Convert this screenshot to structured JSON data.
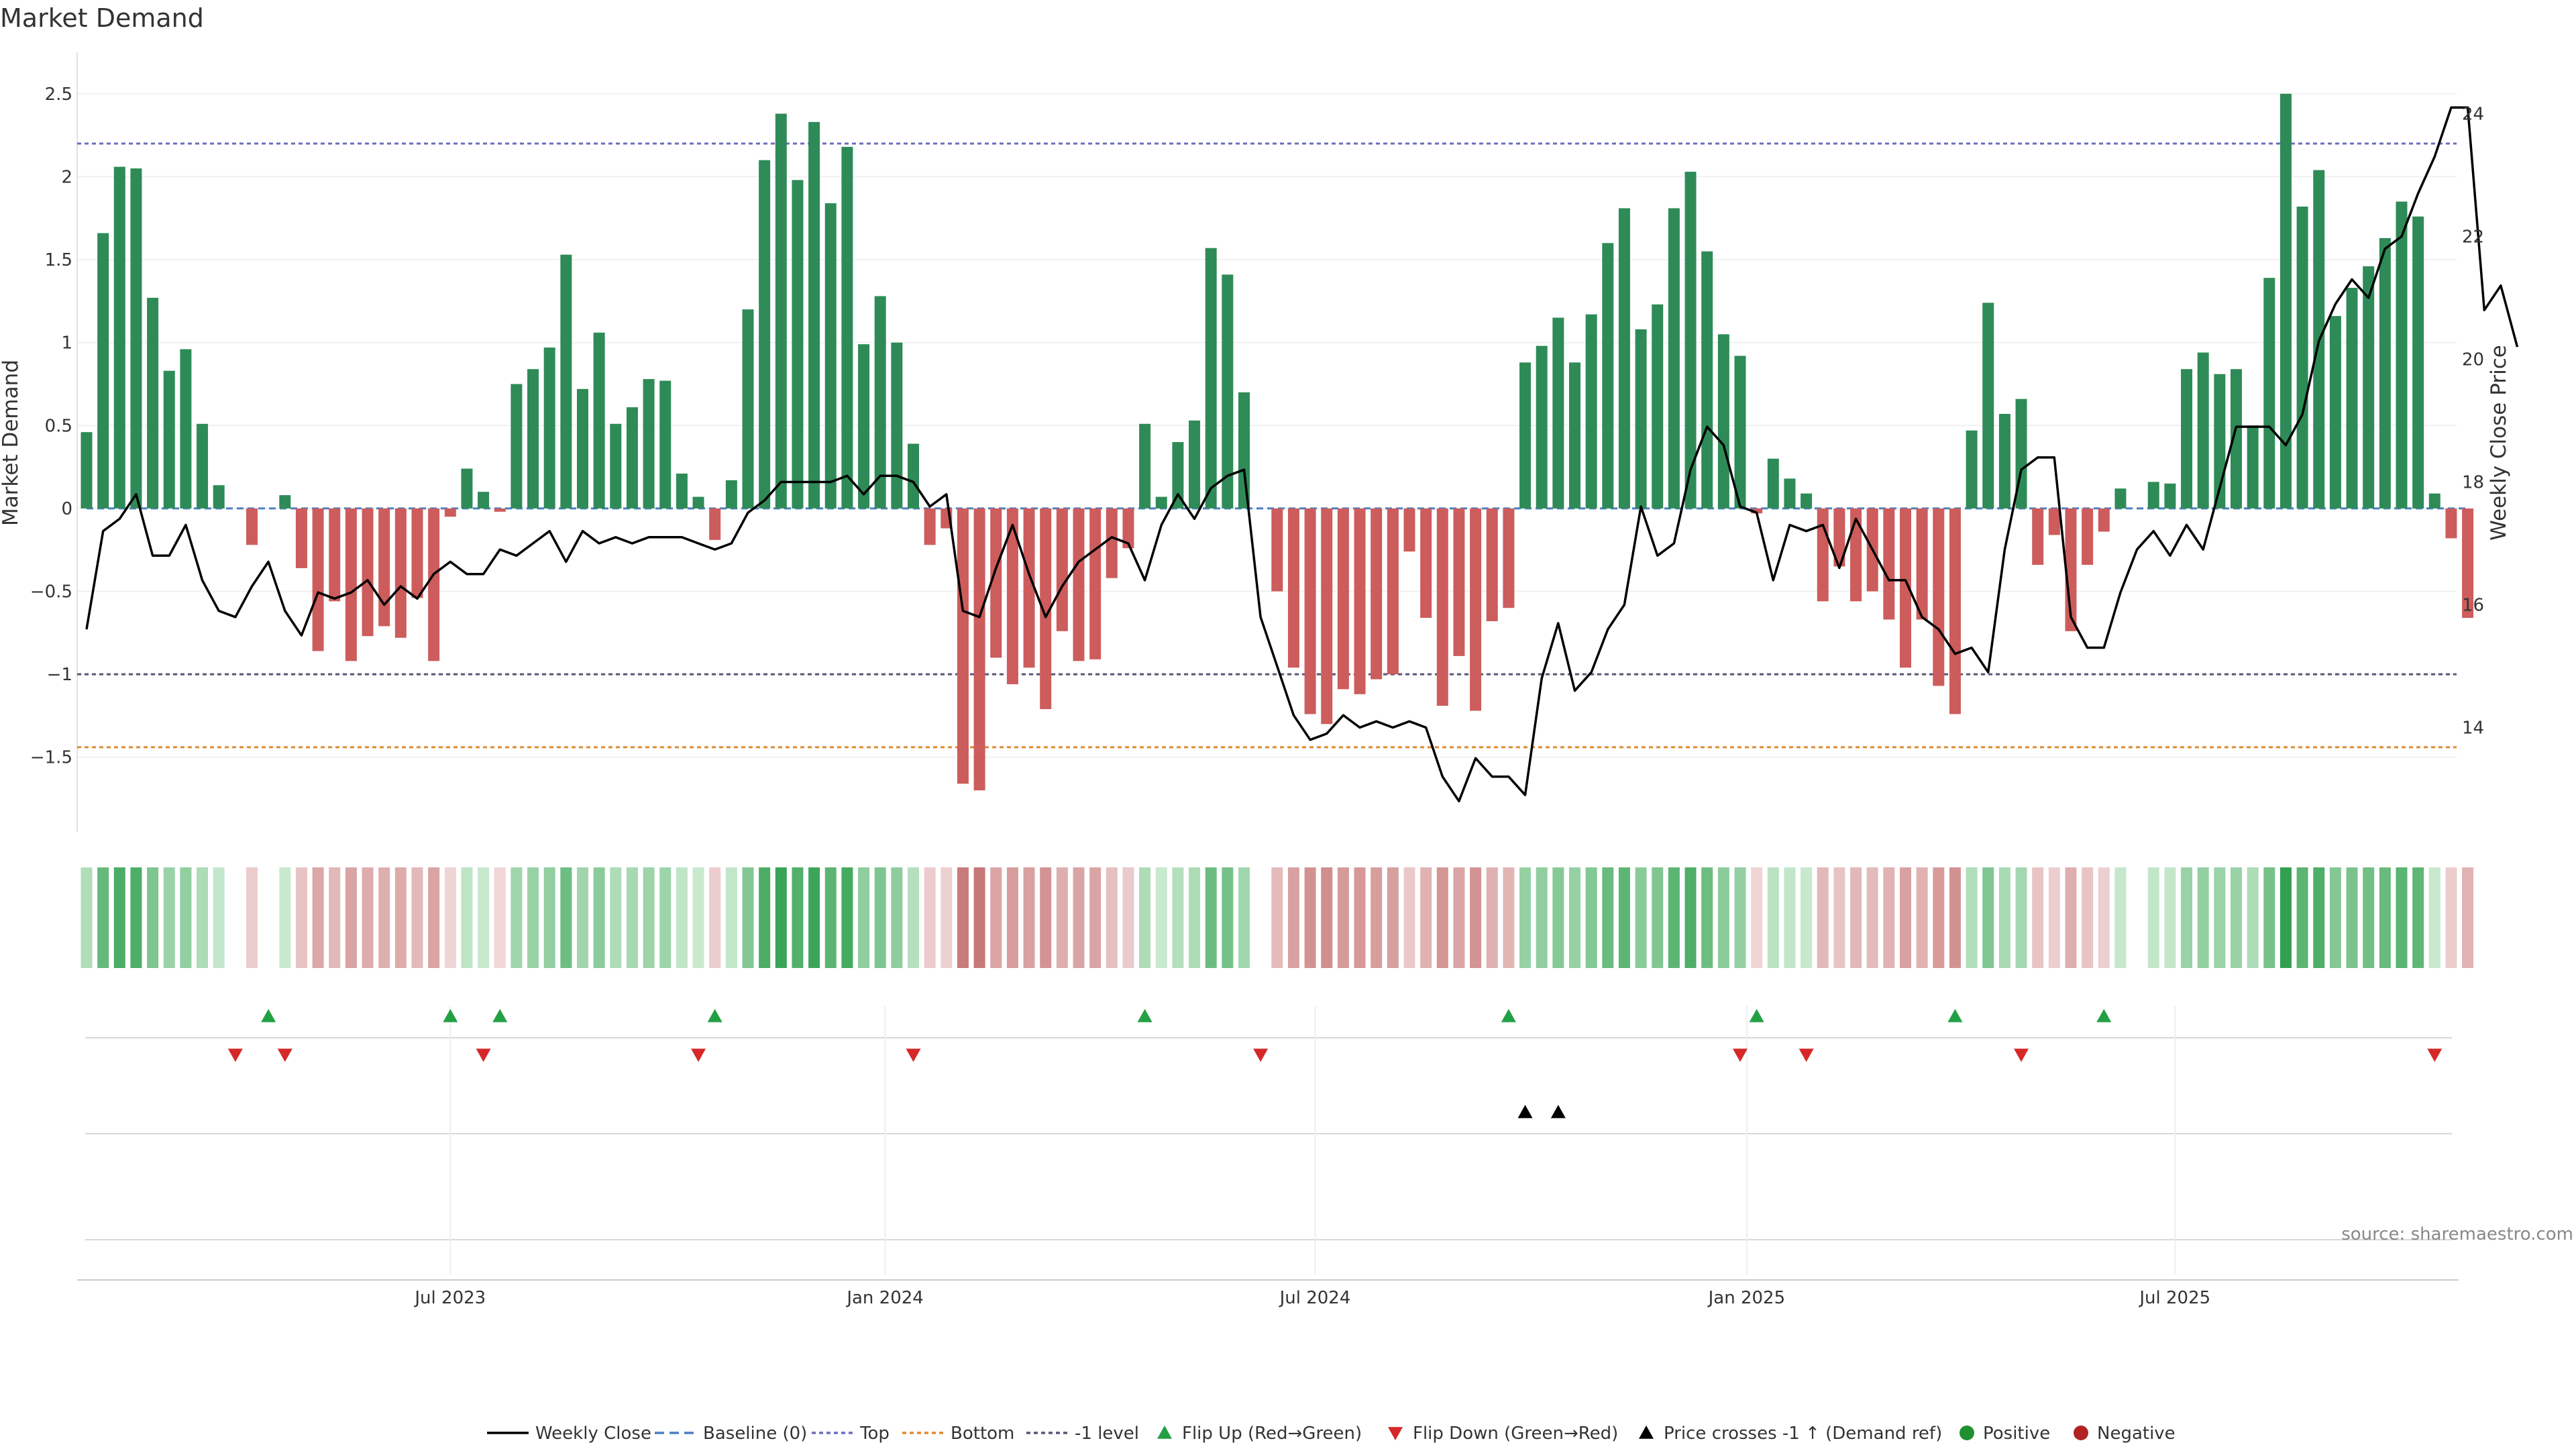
{
  "chart_data": {
    "type": "bar",
    "title": "Market Demand",
    "ylabel": "Market Demand",
    "y2label": "Weekly Close Price",
    "ylim": [
      -1.95,
      2.75
    ],
    "y2lim": [
      12.3,
      25.0
    ],
    "yticks": [
      2.5,
      2,
      1.5,
      1,
      0.5,
      0,
      -0.5,
      -1,
      -1.5
    ],
    "ytick_labels": [
      "2.5",
      "2",
      "1.5",
      "1",
      "0.5",
      "0",
      "−0.5",
      "−1",
      "−1.5"
    ],
    "y2ticks": [
      24,
      22,
      20,
      18,
      16,
      14
    ],
    "y2tick_labels": [
      "24",
      "22",
      "20",
      "18",
      "16",
      "14"
    ],
    "xtick_labels": [
      "Jul 2023",
      "Jan 2024",
      "Jul 2024",
      "Jan 2025",
      "Jul 2025"
    ],
    "xtick_index": [
      22,
      48.3,
      74.3,
      100.4,
      126.3
    ],
    "reference_lines": {
      "top": 2.2,
      "bottom": -1.44,
      "minus_one": -1.0,
      "baseline": 0
    },
    "demand": [
      0.46,
      1.66,
      2.06,
      2.05,
      1.27,
      0.83,
      0.96,
      0.51,
      0.14,
      0,
      -0.22,
      0,
      0.08,
      -0.36,
      -0.86,
      -0.56,
      -0.92,
      -0.77,
      -0.71,
      -0.78,
      -0.54,
      -0.92,
      -0.05,
      0.24,
      0.1,
      -0.02,
      0.75,
      0.84,
      0.97,
      1.53,
      0.72,
      1.06,
      0.51,
      0.61,
      0.78,
      0.77,
      0.21,
      0.07,
      -0.19,
      0.17,
      1.2,
      2.1,
      2.38,
      1.98,
      2.33,
      1.84,
      2.18,
      0.99,
      1.28,
      1.0,
      0.39,
      -0.22,
      -0.12,
      -1.66,
      -1.7,
      -0.9,
      -1.06,
      -0.96,
      -1.21,
      -0.74,
      -0.92,
      -0.91,
      -0.42,
      -0.24,
      0.51,
      0.07,
      0.4,
      0.53,
      1.57,
      1.41,
      0.7,
      0,
      -0.5,
      -0.96,
      -1.24,
      -1.3,
      -1.09,
      -1.12,
      -1.03,
      -1.0,
      -0.26,
      -0.66,
      -1.19,
      -0.89,
      -1.22,
      -0.68,
      -0.6,
      0.88,
      0.98,
      1.15,
      0.88,
      1.17,
      1.6,
      1.81,
      1.08,
      1.23,
      1.81,
      2.03,
      1.55,
      1.05,
      0.92,
      -0.03,
      0.3,
      0.18,
      0.09,
      -0.56,
      -0.35,
      -0.56,
      -0.5,
      -0.67,
      -0.96,
      -0.67,
      -1.07,
      -1.24,
      0.47,
      1.24,
      0.57,
      0.66,
      -0.34,
      -0.16,
      -0.74,
      -0.34,
      -0.14,
      0.12,
      0,
      0.16,
      0.15,
      0.84,
      0.94,
      0.81,
      0.84,
      0.5,
      1.39,
      2.5,
      1.82,
      2.04,
      1.16,
      1.33,
      1.46,
      1.63,
      1.85,
      1.76,
      0.09,
      -0.18,
      -0.66
    ],
    "price": [
      15.6,
      17.2,
      17.4,
      17.8,
      16.8,
      16.8,
      17.3,
      16.4,
      15.9,
      15.8,
      16.3,
      16.7,
      15.9,
      15.5,
      16.2,
      16.1,
      16.2,
      16.4,
      16.0,
      16.3,
      16.1,
      16.5,
      16.7,
      16.5,
      16.5,
      16.9,
      16.8,
      17.0,
      17.2,
      16.7,
      17.2,
      17.0,
      17.1,
      17.0,
      17.1,
      17.1,
      17.1,
      17.0,
      16.9,
      17.0,
      17.5,
      17.7,
      18.0,
      18.0,
      18.0,
      18.0,
      18.1,
      17.8,
      18.1,
      18.1,
      18.0,
      17.6,
      17.8,
      15.9,
      15.8,
      16.6,
      17.3,
      16.5,
      15.8,
      16.3,
      16.7,
      16.9,
      17.1,
      17.0,
      16.4,
      17.3,
      17.8,
      17.4,
      17.9,
      18.1,
      18.2,
      15.8,
      15.0,
      14.2,
      13.8,
      13.9,
      14.2,
      14.0,
      14.1,
      14.0,
      14.1,
      14.0,
      13.2,
      12.8,
      13.5,
      13.2,
      13.2,
      12.9,
      14.8,
      15.7,
      14.6,
      14.9,
      15.6,
      16.0,
      17.6,
      16.8,
      17.0,
      18.2,
      18.9,
      18.6,
      17.6,
      17.5,
      16.4,
      17.3,
      17.2,
      17.3,
      16.6,
      17.4,
      16.9,
      16.4,
      16.4,
      15.8,
      15.6,
      15.2,
      15.3,
      14.9,
      16.9,
      18.2,
      18.4,
      18.4,
      15.8,
      15.3,
      15.3,
      16.2,
      16.9,
      17.2,
      16.8,
      17.3,
      16.9,
      17.9,
      18.9,
      18.9,
      18.9,
      18.6,
      19.1,
      20.3,
      20.9,
      21.3,
      21.0,
      21.8,
      22.0,
      22.7,
      23.3,
      24.1,
      24.1,
      20.8,
      21.2,
      20.2
    ],
    "flip_up_index": [
      11,
      22,
      25,
      38,
      64,
      86,
      101,
      113,
      122
    ],
    "flip_down_index": [
      9,
      12,
      24,
      37,
      50,
      71,
      100,
      104,
      117,
      142
    ],
    "price_cross_index": [
      87,
      89
    ],
    "legend": [
      "Weekly Close",
      "Baseline (0)",
      "Top",
      "Bottom",
      "-1 level",
      "Flip Up (Red→Green)",
      "Flip Down (Green→Red)",
      "Price crosses -1 ↑ (Demand ref)",
      "Positive",
      "Negative"
    ],
    "source": "source: sharemaestro.com"
  },
  "colors": {
    "positive": "#2e8b57",
    "negative": "#cd5c5c",
    "price_line": "#000000",
    "baseline": "#4a7fc1",
    "top": "#6c6cc0",
    "bottom": "#e08a30",
    "minus_one": "#555577",
    "flip_up": "#23a045",
    "flip_down": "#d62828",
    "cross": "#000000",
    "legend_positive": "#1f8f2f",
    "legend_negative": "#b22222"
  }
}
